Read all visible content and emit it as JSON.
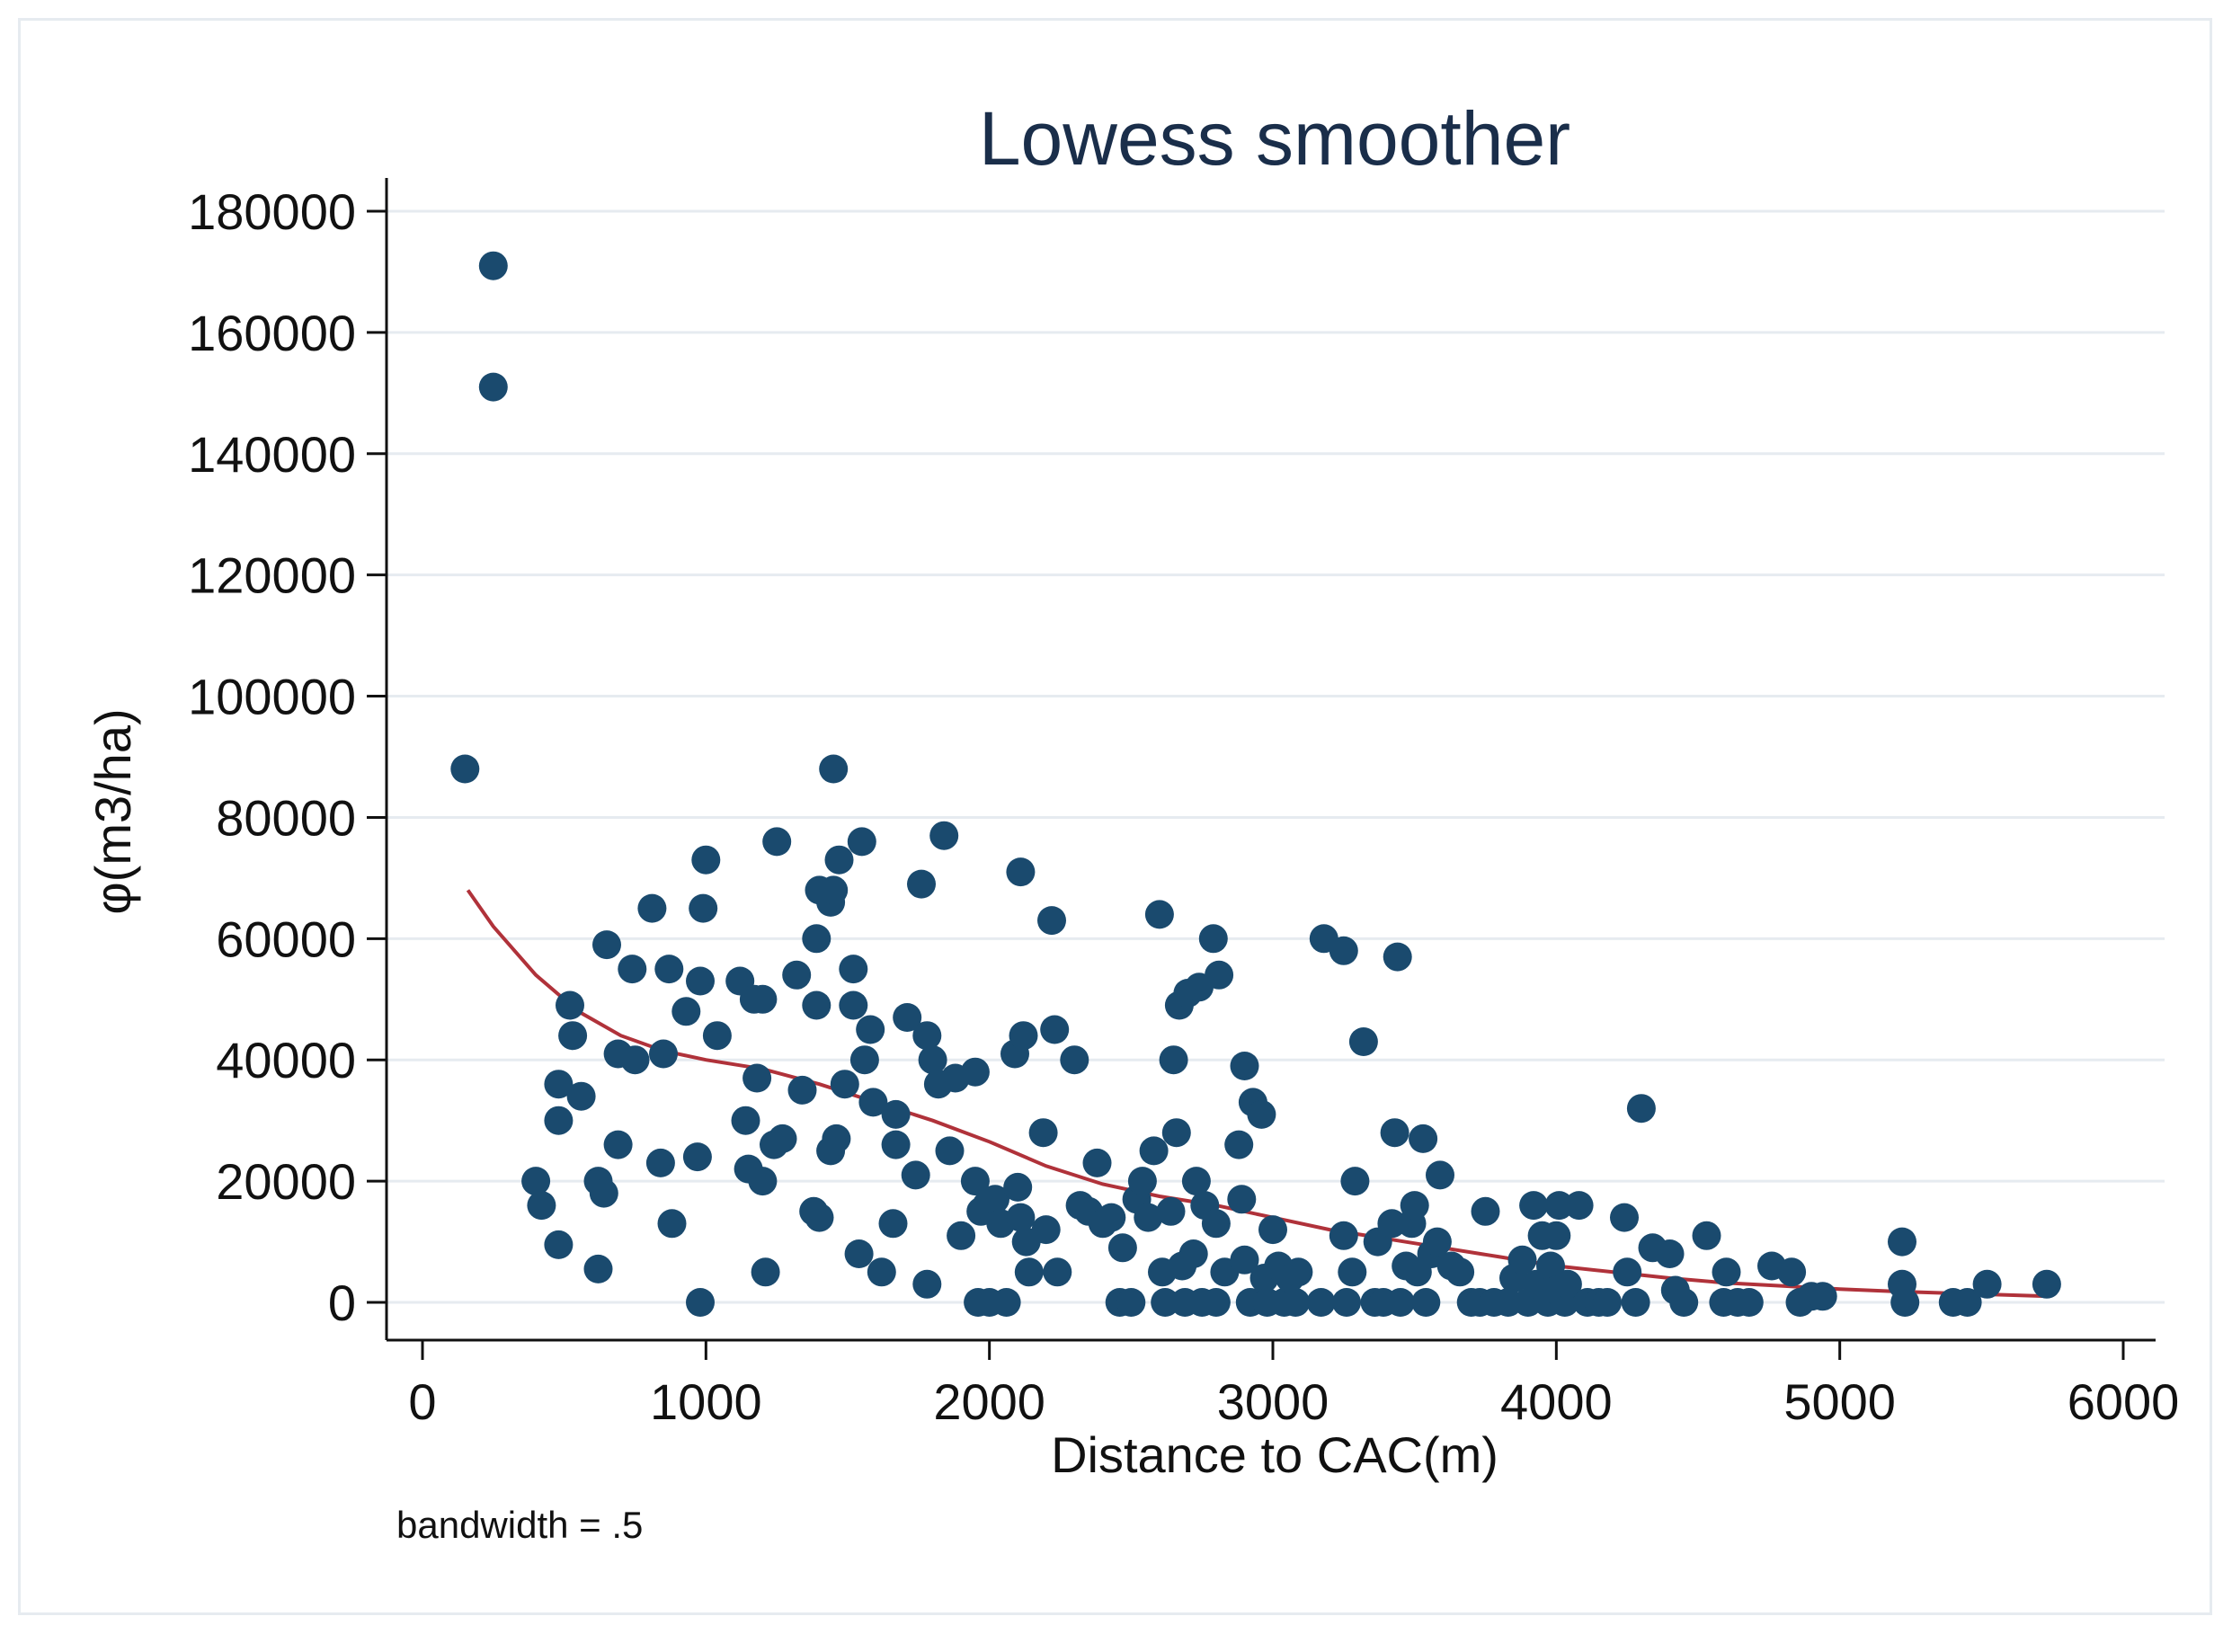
{
  "chart_data": {
    "type": "scatter",
    "title": "Lowess smoother",
    "xlabel": "Distance to CAC(m)",
    "ylabel": "φ(m3/ha)",
    "note": "bandwidth = .5",
    "xlim": [
      0,
      6000
    ],
    "ylim": [
      0,
      180000
    ],
    "xticks": [
      0,
      1000,
      2000,
      3000,
      4000,
      5000,
      6000
    ],
    "yticks": [
      0,
      20000,
      40000,
      60000,
      80000,
      100000,
      120000,
      140000,
      160000,
      180000
    ],
    "grid": true,
    "colors": {
      "points": "#1a4a6e",
      "smoother": "#b0323a",
      "grid": "#e6ebf0",
      "axis": "#111111",
      "title": "#1a2e4a"
    },
    "series": [
      {
        "name": "φ(m3/ha)",
        "kind": "scatter",
        "points": [
          [
            150,
            88000
          ],
          [
            250,
            171000
          ],
          [
            250,
            151000
          ],
          [
            400,
            20000
          ],
          [
            420,
            16000
          ],
          [
            480,
            36000
          ],
          [
            480,
            30000
          ],
          [
            480,
            9500
          ],
          [
            520,
            49000
          ],
          [
            530,
            44000
          ],
          [
            560,
            34000
          ],
          [
            620,
            20000
          ],
          [
            620,
            5500
          ],
          [
            640,
            18000
          ],
          [
            650,
            59000
          ],
          [
            690,
            26000
          ],
          [
            690,
            41000
          ],
          [
            740,
            55000
          ],
          [
            750,
            40000
          ],
          [
            810,
            65000
          ],
          [
            840,
            23000
          ],
          [
            850,
            41000
          ],
          [
            870,
            55000
          ],
          [
            880,
            13000
          ],
          [
            930,
            48000
          ],
          [
            970,
            24000
          ],
          [
            980,
            53000
          ],
          [
            980,
            0
          ],
          [
            990,
            65000
          ],
          [
            1000,
            73000
          ],
          [
            1040,
            44000
          ],
          [
            1120,
            53000
          ],
          [
            1140,
            30000
          ],
          [
            1150,
            22000
          ],
          [
            1170,
            50000
          ],
          [
            1180,
            37000
          ],
          [
            1200,
            50000
          ],
          [
            1200,
            20000
          ],
          [
            1210,
            5000
          ],
          [
            1240,
            26000
          ],
          [
            1250,
            76000
          ],
          [
            1270,
            27000
          ],
          [
            1320,
            54000
          ],
          [
            1340,
            35000
          ],
          [
            1380,
            15000
          ],
          [
            1390,
            60000
          ],
          [
            1390,
            49000
          ],
          [
            1400,
            68000
          ],
          [
            1400,
            14000
          ],
          [
            1440,
            66000
          ],
          [
            1440,
            25000
          ],
          [
            1450,
            88000
          ],
          [
            1450,
            68000
          ],
          [
            1460,
            27000
          ],
          [
            1470,
            73000
          ],
          [
            1490,
            36000
          ],
          [
            1520,
            55000
          ],
          [
            1520,
            49000
          ],
          [
            1540,
            8000
          ],
          [
            1550,
            76000
          ],
          [
            1560,
            40000
          ],
          [
            1580,
            45000
          ],
          [
            1590,
            33000
          ],
          [
            1620,
            5000
          ],
          [
            1660,
            13000
          ],
          [
            1670,
            31000
          ],
          [
            1670,
            26000
          ],
          [
            1710,
            47000
          ],
          [
            1740,
            21000
          ],
          [
            1760,
            69000
          ],
          [
            1780,
            44000
          ],
          [
            1780,
            3000
          ],
          [
            1800,
            40000
          ],
          [
            1820,
            36000
          ],
          [
            1840,
            77000
          ],
          [
            1860,
            25000
          ],
          [
            1880,
            37000
          ],
          [
            1900,
            11000
          ],
          [
            1950,
            38000
          ],
          [
            1950,
            20000
          ],
          [
            1960,
            0
          ],
          [
            1970,
            15000
          ],
          [
            1990,
            16000
          ],
          [
            2000,
            0
          ],
          [
            2020,
            17000
          ],
          [
            2040,
            13000
          ],
          [
            2060,
            0
          ],
          [
            2090,
            41000
          ],
          [
            2100,
            19000
          ],
          [
            2110,
            14000
          ],
          [
            2110,
            71000
          ],
          [
            2120,
            44000
          ],
          [
            2130,
            10000
          ],
          [
            2140,
            5000
          ],
          [
            2190,
            28000
          ],
          [
            2200,
            12000
          ],
          [
            2220,
            63000
          ],
          [
            2230,
            45000
          ],
          [
            2240,
            5000
          ],
          [
            2300,
            40000
          ],
          [
            2320,
            16000
          ],
          [
            2350,
            15000
          ],
          [
            2380,
            23000
          ],
          [
            2400,
            13000
          ],
          [
            2430,
            14000
          ],
          [
            2460,
            0
          ],
          [
            2470,
            9000
          ],
          [
            2500,
            0
          ],
          [
            2520,
            17000
          ],
          [
            2540,
            20000
          ],
          [
            2560,
            14000
          ],
          [
            2580,
            25000
          ],
          [
            2600,
            64000
          ],
          [
            2610,
            5000
          ],
          [
            2620,
            0
          ],
          [
            2640,
            15000
          ],
          [
            2650,
            40000
          ],
          [
            2660,
            28000
          ],
          [
            2670,
            49000
          ],
          [
            2680,
            6000
          ],
          [
            2690,
            0
          ],
          [
            2700,
            51000
          ],
          [
            2720,
            8000
          ],
          [
            2730,
            20000
          ],
          [
            2740,
            52000
          ],
          [
            2750,
            0
          ],
          [
            2760,
            16000
          ],
          [
            2790,
            60000
          ],
          [
            2800,
            13000
          ],
          [
            2800,
            0
          ],
          [
            2810,
            54000
          ],
          [
            2830,
            5000
          ],
          [
            2880,
            26000
          ],
          [
            2890,
            17000
          ],
          [
            2900,
            39000
          ],
          [
            2900,
            7000
          ],
          [
            2920,
            0
          ],
          [
            2930,
            33000
          ],
          [
            2960,
            31000
          ],
          [
            2970,
            4000
          ],
          [
            2980,
            0
          ],
          [
            3000,
            12000
          ],
          [
            3020,
            6000
          ],
          [
            3040,
            0
          ],
          [
            3060,
            4000
          ],
          [
            3080,
            0
          ],
          [
            3090,
            5000
          ],
          [
            3170,
            0
          ],
          [
            3180,
            60000
          ],
          [
            3250,
            58000
          ],
          [
            3250,
            11000
          ],
          [
            3260,
            0
          ],
          [
            3280,
            5000
          ],
          [
            3290,
            20000
          ],
          [
            3320,
            43000
          ],
          [
            3360,
            0
          ],
          [
            3370,
            10000
          ],
          [
            3390,
            0
          ],
          [
            3420,
            13000
          ],
          [
            3430,
            28000
          ],
          [
            3440,
            57000
          ],
          [
            3450,
            0
          ],
          [
            3470,
            6000
          ],
          [
            3490,
            13000
          ],
          [
            3500,
            16000
          ],
          [
            3510,
            5000
          ],
          [
            3530,
            27000
          ],
          [
            3540,
            0
          ],
          [
            3560,
            8000
          ],
          [
            3580,
            10000
          ],
          [
            3590,
            21000
          ],
          [
            3630,
            6000
          ],
          [
            3660,
            5000
          ],
          [
            3700,
            0
          ],
          [
            3730,
            0
          ],
          [
            3750,
            15000
          ],
          [
            3780,
            0
          ],
          [
            3830,
            0
          ],
          [
            3850,
            4000
          ],
          [
            3880,
            7000
          ],
          [
            3900,
            0
          ],
          [
            3920,
            16000
          ],
          [
            3930,
            3000
          ],
          [
            3950,
            11000
          ],
          [
            3970,
            0
          ],
          [
            3980,
            6000
          ],
          [
            4000,
            11000
          ],
          [
            4000,
            2000
          ],
          [
            4010,
            16000
          ],
          [
            4030,
            0
          ],
          [
            4040,
            3000
          ],
          [
            4080,
            16000
          ],
          [
            4110,
            0
          ],
          [
            4150,
            0
          ],
          [
            4180,
            0
          ],
          [
            4240,
            14000
          ],
          [
            4250,
            5000
          ],
          [
            4280,
            0
          ],
          [
            4300,
            32000
          ],
          [
            4340,
            9000
          ],
          [
            4400,
            8000
          ],
          [
            4420,
            2000
          ],
          [
            4450,
            0
          ],
          [
            4530,
            11000
          ],
          [
            4590,
            0
          ],
          [
            4600,
            5000
          ],
          [
            4640,
            0
          ],
          [
            4680,
            0
          ],
          [
            4760,
            6000
          ],
          [
            4830,
            5000
          ],
          [
            4860,
            0
          ],
          [
            4900,
            1000
          ],
          [
            4940,
            1000
          ],
          [
            5220,
            10000
          ],
          [
            5220,
            3000
          ],
          [
            5230,
            0
          ],
          [
            5400,
            0
          ],
          [
            5450,
            0
          ],
          [
            5520,
            3000
          ],
          [
            5730,
            3000
          ]
        ]
      },
      {
        "name": "lowess",
        "kind": "line",
        "points": [
          [
            160,
            68000
          ],
          [
            250,
            62000
          ],
          [
            400,
            54000
          ],
          [
            550,
            48000
          ],
          [
            700,
            44000
          ],
          [
            850,
            41500
          ],
          [
            1000,
            40000
          ],
          [
            1200,
            38500
          ],
          [
            1400,
            36000
          ],
          [
            1600,
            33000
          ],
          [
            1800,
            30000
          ],
          [
            2000,
            26500
          ],
          [
            2200,
            22500
          ],
          [
            2400,
            19500
          ],
          [
            2600,
            17500
          ],
          [
            2800,
            16000
          ],
          [
            3000,
            14000
          ],
          [
            3200,
            12000
          ],
          [
            3400,
            10500
          ],
          [
            3600,
            9000
          ],
          [
            3800,
            7500
          ],
          [
            4000,
            6000
          ],
          [
            4200,
            5000
          ],
          [
            4400,
            4000
          ],
          [
            4600,
            3200
          ],
          [
            4800,
            2700
          ],
          [
            5000,
            2200
          ],
          [
            5200,
            1800
          ],
          [
            5400,
            1500
          ],
          [
            5600,
            1200
          ],
          [
            5740,
            1000
          ]
        ]
      }
    ]
  }
}
